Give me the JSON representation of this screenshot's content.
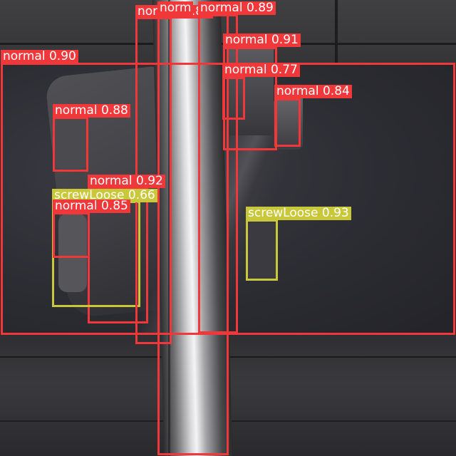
{
  "image": {
    "alt": "Railway fastener inspection with object detection boxes"
  },
  "colors": {
    "normal": "#f0383b",
    "screwLoose": "#c8c83a"
  },
  "detections": [
    {
      "class": "normal",
      "label": "normal 0.90"
    },
    {
      "class": "normal",
      "label": "norm"
    },
    {
      "class": "normal",
      "label": "normal 0.89"
    },
    {
      "class": "normal",
      "label": "normal 0.91"
    },
    {
      "class": "normal",
      "label": "normal 0.77"
    },
    {
      "class": "normal",
      "label": "normal 0.84"
    },
    {
      "class": "normal",
      "label": "normal 0.88"
    },
    {
      "class": "normal",
      "label": "normal 0.92"
    },
    {
      "class": "screwLoose",
      "label": "screwLoose 0.66"
    },
    {
      "class": "normal",
      "label": "normal 0.85"
    },
    {
      "class": "screwLoose",
      "label": "screwLoose 0.93"
    },
    {
      "class": "normal",
      "label": "normal 0.80"
    }
  ]
}
